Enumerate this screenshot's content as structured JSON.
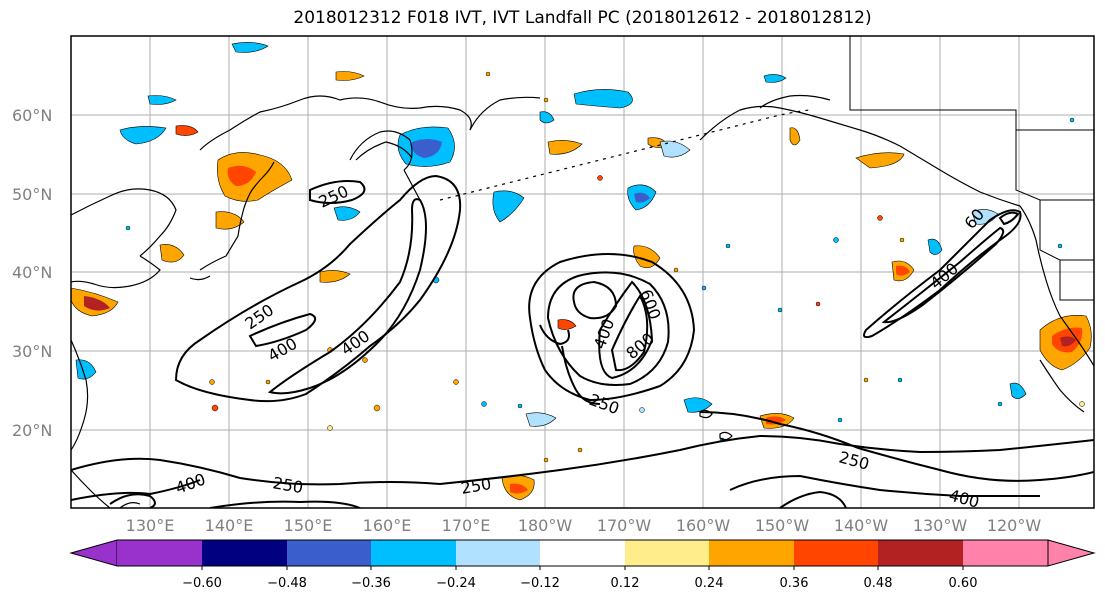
{
  "title": "2018012312 F018 IVT, IVT Landfall PC (2018012612 - 2018012812)",
  "map": {
    "lat_labels": [
      "60°N",
      "50°N",
      "40°N",
      "30°N",
      "20°N"
    ],
    "lon_labels": [
      "130°E",
      "140°E",
      "150°E",
      "160°E",
      "170°E",
      "180°W",
      "170°W",
      "160°W",
      "150°W",
      "140°W",
      "130°W",
      "120°W"
    ],
    "contour_labels": [
      "250",
      "250",
      "400",
      "400",
      "600",
      "400",
      "800",
      "250",
      "250",
      "250",
      "400",
      "250",
      "400",
      "400",
      "60"
    ],
    "contour_color": "#000000",
    "coastline_color": "#000000",
    "grid_color": "#808080"
  },
  "colorbar": {
    "ticks": [
      "−0.60",
      "−0.48",
      "−0.36",
      "−0.24",
      "−0.12",
      "0.12",
      "0.24",
      "0.36",
      "0.48",
      "0.60"
    ],
    "colors": [
      "#9932cc",
      "#000080",
      "#3a5fcd",
      "#00bfff",
      "#b0e2ff",
      "#ffffff",
      "#ffec8b",
      "#ffa500",
      "#ff4500",
      "#b22222",
      "#ff82ab"
    ]
  }
}
